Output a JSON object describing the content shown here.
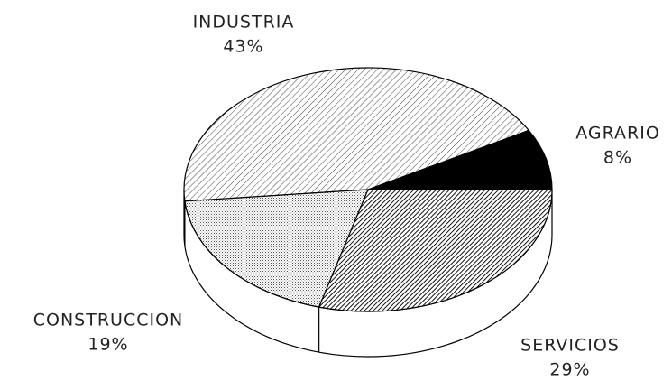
{
  "chart_data": {
    "type": "pie",
    "categories": [
      "AGRARIO",
      "INDUSTRIA",
      "CONSTRUCCION",
      "SERVICIOS"
    ],
    "values": [
      8,
      43,
      19,
      29
    ],
    "value_labels": [
      "8%",
      "43%",
      "19%",
      "29%"
    ]
  }
}
